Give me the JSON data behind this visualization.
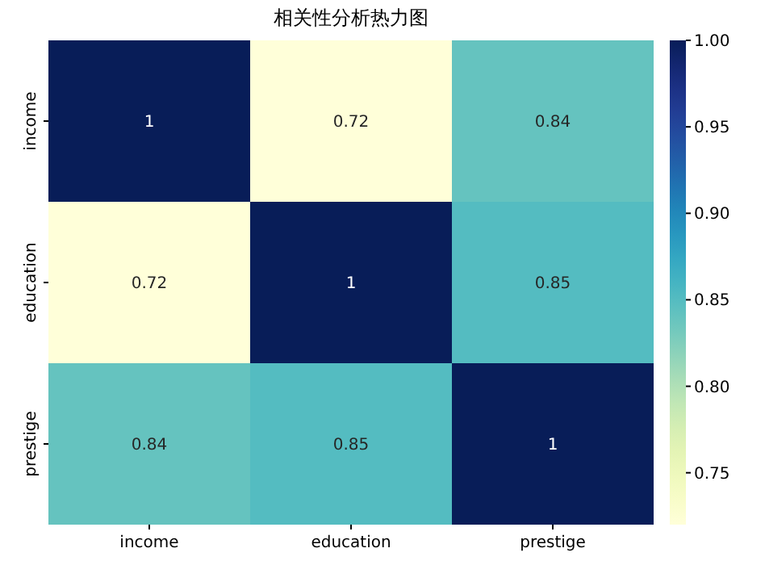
{
  "chart_data": {
    "type": "heatmap",
    "title": "相关性分析热力图",
    "categories": [
      "income",
      "education",
      "prestige"
    ],
    "y_categories": [
      "income",
      "education",
      "prestige"
    ],
    "cells": [
      [
        1,
        0.72,
        0.84
      ],
      [
        0.72,
        1,
        0.85
      ],
      [
        0.84,
        0.85,
        1
      ]
    ],
    "data_labels": true,
    "clim": [
      0.72,
      1
    ],
    "cticks": [
      {
        "value": 0.75,
        "label": "0.75"
      },
      {
        "value": 0.8,
        "label": "0.80"
      },
      {
        "value": 0.85,
        "label": "0.85"
      },
      {
        "value": 0.9,
        "label": "0.90"
      },
      {
        "value": 0.95,
        "label": "0.95"
      },
      {
        "value": 1,
        "label": "1.00"
      }
    ]
  }
}
